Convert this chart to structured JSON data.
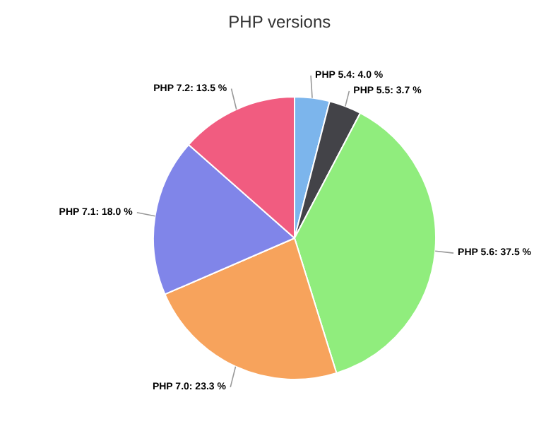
{
  "chart_data": {
    "type": "pie",
    "title": "PHP versions",
    "categories": [
      "PHP 5.4",
      "PHP 5.5",
      "PHP 5.6",
      "PHP 7.0",
      "PHP 7.1",
      "PHP 7.2"
    ],
    "values": [
      4.0,
      3.7,
      37.5,
      23.3,
      18.0,
      13.5
    ],
    "colors": [
      "#7cb5ec",
      "#434348",
      "#90ed7d",
      "#f7a35c",
      "#8085e9",
      "#f15c80"
    ],
    "value_labels": [
      "4.0 %",
      "3.7 %",
      "37.5 %",
      "23.3 %",
      "18.0 %",
      "13.5 %"
    ]
  }
}
